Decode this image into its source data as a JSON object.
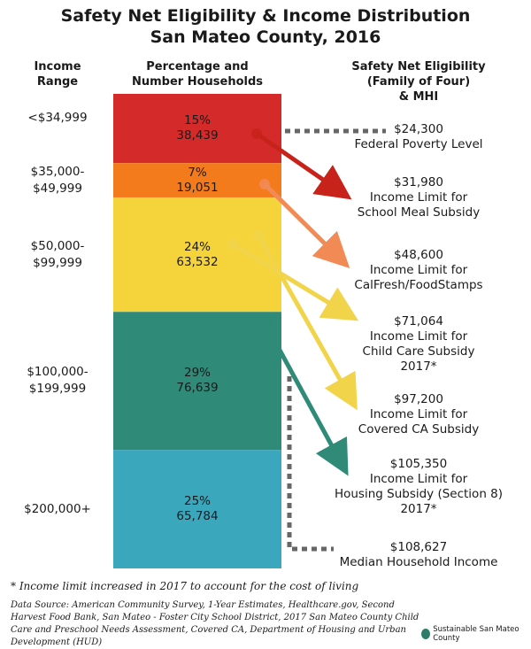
{
  "title_line1": "Safety Net Eligibility & Income Distribution",
  "title_line2": "San Mateo County, 2016",
  "headers": {
    "income_range": [
      "Income",
      "Range"
    ],
    "households": [
      "Percentage and",
      "Number Households"
    ],
    "eligibility": [
      "Safety Net Eligibility",
      "(Family of Four)",
      "& MHI"
    ]
  },
  "colors": {
    "seg1": "#d42a2a",
    "seg2": "#f47b1c",
    "seg3": "#f5d33a",
    "seg4": "#2f8a77",
    "seg5": "#3aa7bd",
    "dotted": "#666666"
  },
  "chart_data": {
    "type": "bar",
    "title": "Safety Net Eligibility & Income Distribution San Mateo County, 2016",
    "categories": [
      "<$34,999",
      "$35,000-$49,999",
      "$50,000-$99,999",
      "$100,000-$199,999",
      "$200,000+"
    ],
    "range_labels": [
      [
        "<$34,999"
      ],
      [
        "$35,000-",
        "$49,999"
      ],
      [
        "$50,000-",
        "$99,999"
      ],
      [
        "$100,000-",
        "$199,999"
      ],
      [
        "$200,000+"
      ]
    ],
    "percent_labels": [
      "15%",
      "7%",
      "24%",
      "29%",
      "25%"
    ],
    "household_labels": [
      "38,439",
      "19,051",
      "63,532",
      "76,639",
      "65,784"
    ],
    "values": [
      38439,
      19051,
      63532,
      76639,
      65784
    ],
    "percentages": [
      15,
      7,
      24,
      29,
      25
    ],
    "eligibility": [
      {
        "value": "$24,300",
        "label": [
          "Federal Poverty Level"
        ]
      },
      {
        "value": "$31,980",
        "label": [
          "Income Limit for",
          "School Meal Subsidy"
        ]
      },
      {
        "value": "$48,600",
        "label": [
          "Income Limit for",
          "CalFresh/FoodStamps"
        ]
      },
      {
        "value": "$71,064",
        "label": [
          "Income Limit for",
          "Child Care Subsidy",
          "2017*"
        ]
      },
      {
        "value": "$97,200",
        "label": [
          "Income Limit for",
          "Covered CA Subsidy"
        ]
      },
      {
        "value": "$105,350",
        "label": [
          "Income Limit for",
          "Housing Subsidy (Section 8)",
          "2017*"
        ]
      },
      {
        "value": "$108,627",
        "label": [
          "Median Household Income"
        ]
      }
    ]
  },
  "footnote": "* Income limit increased in 2017 to account for the cost of living",
  "source": "Data Source: American Community Survey, 1-Year Estimates, Healthcare.gov, Second Harvest Food Bank, San Mateo - Foster City School District, 2017 San Mateo County Child Care and Preschool Needs Assessment, Covered CA, Department of Housing and Urban Development (HUD)",
  "brand": "Sustainable San Mateo County"
}
